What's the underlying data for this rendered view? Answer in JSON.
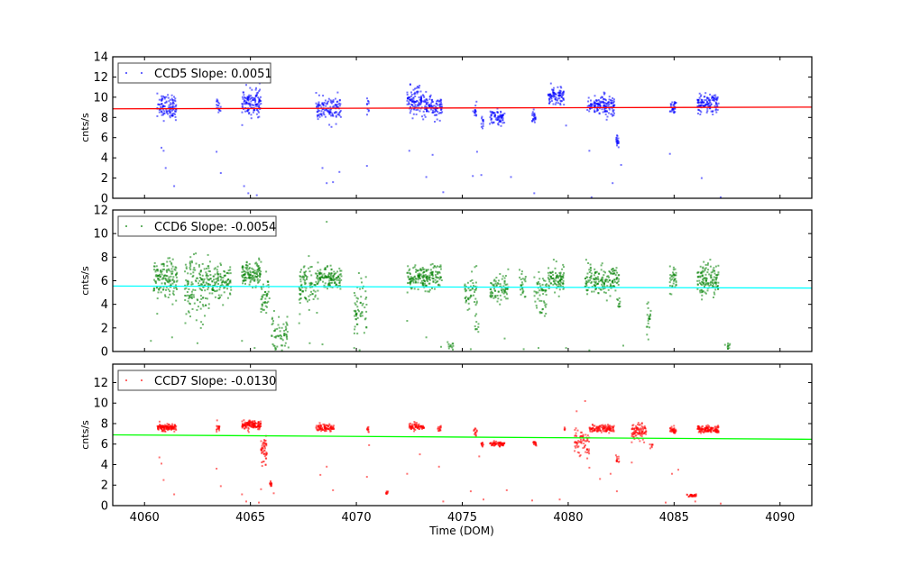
{
  "chart_data": [
    {
      "type": "scatter",
      "title": "",
      "xlabel": "",
      "ylabel": "cnts/s",
      "xlim": [
        4058.5,
        4091.5
      ],
      "ylim": [
        0,
        14
      ],
      "yticks": [
        0,
        2,
        4,
        6,
        8,
        10,
        12,
        14
      ],
      "xticks": [
        4060,
        4065,
        4070,
        4075,
        4080,
        4085,
        4090
      ],
      "legend": {
        "label": "CCD5 Slope: 0.0051",
        "placement": "top-left"
      },
      "point_color": "#0000ff",
      "fit_color": "#ff0000",
      "fit_line": {
        "x": [
          4058.5,
          4091.5
        ],
        "y": [
          8.85,
          9.02
        ]
      },
      "clusters": [
        {
          "x": [
            4060.6,
            4061.5
          ],
          "y": 9.1,
          "sd": 0.6,
          "n": 110
        },
        {
          "x": [
            4063.4,
            4063.6
          ],
          "y": 9.0,
          "sd": 0.4,
          "n": 18
        },
        {
          "x": [
            4064.6,
            4065.5
          ],
          "y": 9.5,
          "sd": 0.65,
          "n": 130
        },
        {
          "x": [
            4068.1,
            4069.3
          ],
          "y": 8.8,
          "sd": 0.6,
          "n": 120
        },
        {
          "x": [
            4070.5,
            4070.6
          ],
          "y": 9.0,
          "sd": 0.4,
          "n": 10
        },
        {
          "x": [
            4072.4,
            4073.2
          ],
          "y": 9.6,
          "sd": 0.7,
          "n": 110
        },
        {
          "x": [
            4073.2,
            4074.05
          ],
          "y": 9.0,
          "sd": 0.5,
          "n": 100
        },
        {
          "x": [
            4075.5,
            4075.7
          ],
          "y": 8.6,
          "sd": 0.4,
          "n": 14
        },
        {
          "x": [
            4075.9,
            4076.0
          ],
          "y": 7.6,
          "sd": 0.4,
          "n": 12
        },
        {
          "x": [
            4076.3,
            4077.0
          ],
          "y": 8.0,
          "sd": 0.35,
          "n": 70
        },
        {
          "x": [
            4078.3,
            4078.5
          ],
          "y": 8.0,
          "sd": 0.35,
          "n": 22
        },
        {
          "x": [
            4079.05,
            4079.8
          ],
          "y": 10.1,
          "sd": 0.4,
          "n": 90
        },
        {
          "x": [
            4080.9,
            4082.2
          ],
          "y": 9.2,
          "sd": 0.5,
          "n": 150
        },
        {
          "x": [
            4082.25,
            4082.4
          ],
          "y": 5.7,
          "sd": 0.25,
          "n": 20
        },
        {
          "x": [
            4084.8,
            4085.1
          ],
          "y": 9.0,
          "sd": 0.4,
          "n": 30
        },
        {
          "x": [
            4086.1,
            4087.1
          ],
          "y": 9.3,
          "sd": 0.5,
          "n": 120
        }
      ],
      "outliers": [
        [
          4060.8,
          5.0
        ],
        [
          4060.9,
          4.7
        ],
        [
          4061.0,
          3.0
        ],
        [
          4061.4,
          1.2
        ],
        [
          4063.4,
          4.6
        ],
        [
          4063.6,
          2.5
        ],
        [
          4064.7,
          1.2
        ],
        [
          4064.9,
          0.5
        ],
        [
          4065.3,
          0.3
        ],
        [
          4068.4,
          3.0
        ],
        [
          4068.6,
          1.5
        ],
        [
          4068.9,
          1.6
        ],
        [
          4069.2,
          2.6
        ],
        [
          4070.5,
          3.2
        ],
        [
          4072.5,
          4.7
        ],
        [
          4073.3,
          2.1
        ],
        [
          4073.6,
          4.3
        ],
        [
          4074.1,
          0.6
        ],
        [
          4075.5,
          2.2
        ],
        [
          4075.7,
          4.6
        ],
        [
          4075.9,
          2.3
        ],
        [
          4077.3,
          2.1
        ],
        [
          4078.4,
          0.5
        ],
        [
          4079.9,
          7.2
        ],
        [
          4081.0,
          4.7
        ],
        [
          4081.1,
          0.1
        ],
        [
          4082.1,
          1.5
        ],
        [
          4082.5,
          3.3
        ],
        [
          4084.8,
          4.4
        ],
        [
          4086.3,
          2.0
        ],
        [
          4087.2,
          0.1
        ]
      ]
    },
    {
      "type": "scatter",
      "title": "",
      "xlabel": "",
      "ylabel": "cnts/s",
      "xlim": [
        4058.5,
        4091.5
      ],
      "ylim": [
        0,
        12
      ],
      "yticks": [
        0,
        2,
        4,
        6,
        8,
        10,
        12
      ],
      "xticks": [
        4060,
        4065,
        4070,
        4075,
        4080,
        4085,
        4090
      ],
      "legend": {
        "label": "CCD6 Slope: -0.0054",
        "placement": "top-left"
      },
      "point_color": "#008000",
      "fit_color": "#00ffff",
      "fit_line": {
        "x": [
          4058.5,
          4091.5
        ],
        "y": [
          5.55,
          5.38
        ]
      },
      "clusters": [
        {
          "x": [
            4060.4,
            4061.55
          ],
          "y": 6.1,
          "sd": 0.8,
          "n": 140
        },
        {
          "x": [
            4061.9,
            4063.0
          ],
          "y": 5.4,
          "sd": 1.3,
          "n": 140
        },
        {
          "x": [
            4063.0,
            4064.1
          ],
          "y": 6.0,
          "sd": 0.7,
          "n": 120
        },
        {
          "x": [
            4064.6,
            4065.5
          ],
          "y": 6.6,
          "sd": 0.5,
          "n": 120
        },
        {
          "x": [
            4065.5,
            4065.9
          ],
          "y": 4.6,
          "sd": 0.8,
          "n": 45
        },
        {
          "x": [
            4066.0,
            4066.8
          ],
          "y": 1.6,
          "sd": 0.8,
          "n": 60
        },
        {
          "x": [
            4067.3,
            4068.2
          ],
          "y": 5.6,
          "sd": 1.0,
          "n": 100
        },
        {
          "x": [
            4068.2,
            4069.3
          ],
          "y": 6.2,
          "sd": 0.5,
          "n": 120
        },
        {
          "x": [
            4069.9,
            4070.5
          ],
          "y": 3.3,
          "sd": 1.2,
          "n": 60
        },
        {
          "x": [
            4072.4,
            4074.05
          ],
          "y": 6.3,
          "sd": 0.5,
          "n": 180
        },
        {
          "x": [
            4074.3,
            4074.6
          ],
          "y": 0.5,
          "sd": 0.2,
          "n": 12
        },
        {
          "x": [
            4075.1,
            4075.7
          ],
          "y": 5.0,
          "sd": 0.9,
          "n": 50
        },
        {
          "x": [
            4075.6,
            4075.8
          ],
          "y": 2.3,
          "sd": 0.4,
          "n": 10
        },
        {
          "x": [
            4076.3,
            4077.2
          ],
          "y": 5.4,
          "sd": 0.6,
          "n": 80
        },
        {
          "x": [
            4077.7,
            4078.0
          ],
          "y": 5.5,
          "sd": 0.6,
          "n": 25
        },
        {
          "x": [
            4078.4,
            4079.0
          ],
          "y": 5.0,
          "sd": 1.1,
          "n": 55
        },
        {
          "x": [
            4079.05,
            4079.8
          ],
          "y": 6.3,
          "sd": 0.6,
          "n": 90
        },
        {
          "x": [
            4080.8,
            4082.4
          ],
          "y": 6.0,
          "sd": 0.6,
          "n": 170
        },
        {
          "x": [
            4082.3,
            4082.45
          ],
          "y": 4.2,
          "sd": 0.25,
          "n": 10
        },
        {
          "x": [
            4083.7,
            4083.9
          ],
          "y": 2.5,
          "sd": 0.9,
          "n": 20
        },
        {
          "x": [
            4084.8,
            4085.1
          ],
          "y": 6.0,
          "sd": 0.6,
          "n": 35
        },
        {
          "x": [
            4086.1,
            4087.1
          ],
          "y": 6.1,
          "sd": 0.6,
          "n": 130
        },
        {
          "x": [
            4087.4,
            4087.7
          ],
          "y": 0.5,
          "sd": 0.15,
          "n": 10
        }
      ],
      "outliers": [
        [
          4060.3,
          0.9
        ],
        [
          4060.6,
          3.2
        ],
        [
          4061.3,
          1.2
        ],
        [
          4062.5,
          0.7
        ],
        [
          4064.6,
          0.9
        ],
        [
          4065.2,
          0.3
        ],
        [
          4067.3,
          2.4
        ],
        [
          4067.8,
          0.7
        ],
        [
          4068.4,
          0.6
        ],
        [
          4068.6,
          11.0
        ],
        [
          4069.9,
          0.3
        ],
        [
          4072.4,
          2.6
        ],
        [
          4073.3,
          1.2
        ],
        [
          4074.0,
          0.4
        ],
        [
          4075.4,
          0.2
        ],
        [
          4077.0,
          1.1
        ],
        [
          4077.9,
          0.2
        ],
        [
          4078.6,
          0.3
        ],
        [
          4079.9,
          0.3
        ],
        [
          4081.0,
          0.1
        ],
        [
          4082.6,
          0.5
        ]
      ]
    },
    {
      "type": "scatter",
      "title": "",
      "xlabel": "Time (DOM)",
      "ylabel": "cnts/s",
      "xlim": [
        4058.5,
        4091.5
      ],
      "ylim": [
        0,
        13.8
      ],
      "yticks": [
        0,
        2,
        4,
        6,
        8,
        10,
        12
      ],
      "xticks": [
        4060,
        4065,
        4070,
        4075,
        4080,
        4085,
        4090
      ],
      "legend": {
        "label": "CCD7 Slope: -0.0130",
        "placement": "top-left"
      },
      "point_color": "#ff0000",
      "fit_color": "#00ff00",
      "fit_line": {
        "x": [
          4058.5,
          4091.5
        ],
        "y": [
          6.9,
          6.47
        ]
      },
      "clusters": [
        {
          "x": [
            4060.6,
            4061.5
          ],
          "y": 7.6,
          "sd": 0.18,
          "n": 130
        },
        {
          "x": [
            4063.4,
            4063.55
          ],
          "y": 7.6,
          "sd": 0.2,
          "n": 16
        },
        {
          "x": [
            4064.6,
            4065.5
          ],
          "y": 7.85,
          "sd": 0.2,
          "n": 140
        },
        {
          "x": [
            4065.5,
            4065.8
          ],
          "y": 5.4,
          "sd": 0.7,
          "n": 50
        },
        {
          "x": [
            4065.9,
            4066.0
          ],
          "y": 2.1,
          "sd": 0.12,
          "n": 14
        },
        {
          "x": [
            4068.1,
            4068.95
          ],
          "y": 7.6,
          "sd": 0.18,
          "n": 90
        },
        {
          "x": [
            4070.5,
            4070.6
          ],
          "y": 7.45,
          "sd": 0.12,
          "n": 10
        },
        {
          "x": [
            4071.4,
            4071.5
          ],
          "y": 1.25,
          "sd": 0.1,
          "n": 10
        },
        {
          "x": [
            4072.5,
            4073.2
          ],
          "y": 7.7,
          "sd": 0.15,
          "n": 75
        },
        {
          "x": [
            4073.85,
            4074.0
          ],
          "y": 7.5,
          "sd": 0.18,
          "n": 14
        },
        {
          "x": [
            4075.55,
            4075.7
          ],
          "y": 7.2,
          "sd": 0.2,
          "n": 14
        },
        {
          "x": [
            4075.9,
            4076.0
          ],
          "y": 6.0,
          "sd": 0.15,
          "n": 12
        },
        {
          "x": [
            4076.3,
            4077.0
          ],
          "y": 6.05,
          "sd": 0.12,
          "n": 70
        },
        {
          "x": [
            4078.35,
            4078.5
          ],
          "y": 6.05,
          "sd": 0.12,
          "n": 16
        },
        {
          "x": [
            4079.8,
            4079.85
          ],
          "y": 7.5,
          "sd": 0.2,
          "n": 5
        },
        {
          "x": [
            4080.3,
            4081.0
          ],
          "y": 6.2,
          "sd": 0.7,
          "n": 70
        },
        {
          "x": [
            4081.0,
            4082.2
          ],
          "y": 7.5,
          "sd": 0.15,
          "n": 120
        },
        {
          "x": [
            4082.25,
            4082.4
          ],
          "y": 4.5,
          "sd": 0.15,
          "n": 12
        },
        {
          "x": [
            4083.0,
            4083.7
          ],
          "y": 7.2,
          "sd": 0.45,
          "n": 90
        },
        {
          "x": [
            4083.85,
            4084.0
          ],
          "y": 5.8,
          "sd": 0.15,
          "n": 8
        },
        {
          "x": [
            4084.8,
            4085.1
          ],
          "y": 7.35,
          "sd": 0.15,
          "n": 35
        },
        {
          "x": [
            4085.6,
            4086.05
          ],
          "y": 1.0,
          "sd": 0.07,
          "n": 30
        },
        {
          "x": [
            4086.1,
            4087.1
          ],
          "y": 7.45,
          "sd": 0.15,
          "n": 130
        }
      ],
      "outliers": [
        [
          4060.7,
          4.7
        ],
        [
          4060.8,
          4.1
        ],
        [
          4060.9,
          2.5
        ],
        [
          4061.4,
          1.1
        ],
        [
          4063.4,
          3.6
        ],
        [
          4063.6,
          1.9
        ],
        [
          4064.6,
          1.1
        ],
        [
          4064.8,
          0.4
        ],
        [
          4065.4,
          0.3
        ],
        [
          4065.5,
          1.6
        ],
        [
          4066.1,
          1.2
        ],
        [
          4068.3,
          3.0
        ],
        [
          4068.6,
          3.8
        ],
        [
          4068.9,
          1.5
        ],
        [
          4070.5,
          2.8
        ],
        [
          4070.6,
          5.9
        ],
        [
          4072.4,
          3.1
        ],
        [
          4073.0,
          5.0
        ],
        [
          4073.9,
          3.8
        ],
        [
          4074.1,
          0.4
        ],
        [
          4075.4,
          1.4
        ],
        [
          4075.8,
          4.8
        ],
        [
          4076.0,
          0.6
        ],
        [
          4077.1,
          1.5
        ],
        [
          4078.3,
          0.5
        ],
        [
          4079.6,
          0.6
        ],
        [
          4080.4,
          9.2
        ],
        [
          4080.8,
          10.2
        ],
        [
          4081.0,
          3.7
        ],
        [
          4081.5,
          2.6
        ],
        [
          4082.0,
          3.1
        ],
        [
          4082.3,
          1.4
        ],
        [
          4083.0,
          4.2
        ],
        [
          4084.6,
          0.3
        ],
        [
          4084.9,
          3.1
        ],
        [
          4085.2,
          3.5
        ],
        [
          4086.0,
          0.4
        ],
        [
          4087.2,
          0.2
        ]
      ]
    }
  ]
}
